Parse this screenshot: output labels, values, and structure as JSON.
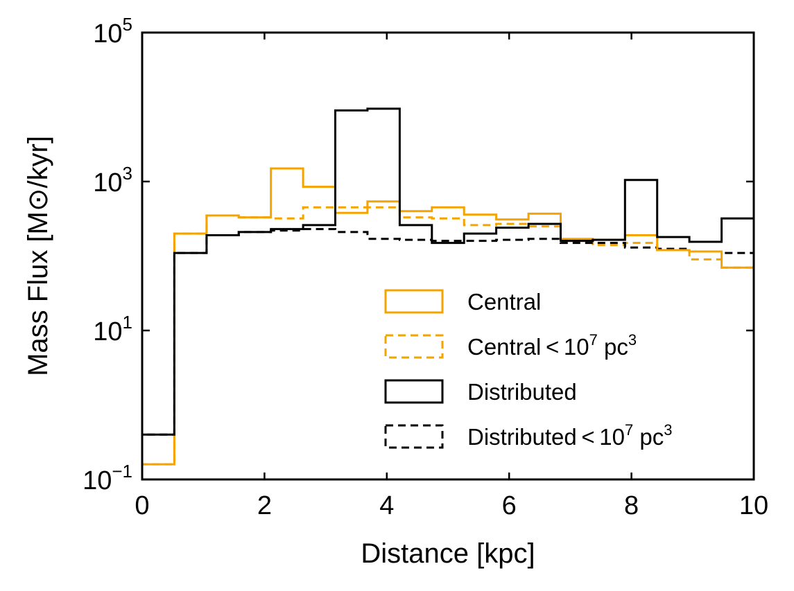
{
  "chart_data": {
    "type": "histogram-step",
    "title": "",
    "xlabel": "Distance [kpc]",
    "ylabel": "Mass Flux [M⊙/kyr]",
    "xlim": [
      0,
      10
    ],
    "ylim": [
      0.1,
      100000
    ],
    "yscale": "log",
    "grid": false,
    "legend_position": "lower-right",
    "x_ticks": [
      {
        "value": 0,
        "label": "0"
      },
      {
        "value": 2,
        "label": "2"
      },
      {
        "value": 4,
        "label": "4"
      },
      {
        "value": 6,
        "label": "6"
      },
      {
        "value": 8,
        "label": "8"
      },
      {
        "value": 10,
        "label": "10"
      }
    ],
    "y_ticks": [
      {
        "value": 0.1,
        "base": "10",
        "exp": "−1"
      },
      {
        "value": 10,
        "base": "10",
        "exp": "1"
      },
      {
        "value": 1000,
        "base": "10",
        "exp": "3"
      },
      {
        "value": 100000,
        "base": "10",
        "exp": "5"
      }
    ],
    "bin_edges": [
      0,
      0.526,
      1.053,
      1.579,
      2.105,
      2.632,
      3.158,
      3.684,
      4.211,
      4.737,
      5.263,
      5.789,
      6.316,
      6.842,
      7.368,
      7.895,
      8.421,
      8.947,
      9.474,
      10
    ],
    "series": [
      {
        "name": "Central",
        "color": "#f5a300",
        "dash": "solid",
        "values": [
          0.16,
          200,
          350,
          330,
          1500,
          850,
          380,
          540,
          400,
          450,
          360,
          310,
          370,
          170,
          165,
          190,
          120,
          115,
          70
        ]
      },
      {
        "name": "Central < 10⁷ pc³",
        "color": "#f5a300",
        "dash": "dashed",
        "values": [
          0.16,
          200,
          350,
          330,
          320,
          450,
          450,
          450,
          330,
          320,
          260,
          270,
          250,
          160,
          140,
          150,
          120,
          90,
          70
        ]
      },
      {
        "name": "Distributed",
        "color": "#000000",
        "dash": "solid",
        "values": [
          0.4,
          110,
          190,
          210,
          230,
          260,
          9000,
          9500,
          260,
          150,
          200,
          240,
          270,
          160,
          165,
          1050,
          180,
          155,
          320
        ]
      },
      {
        "name": "Distributed < 10⁷ pc³",
        "color": "#000000",
        "dash": "dashed",
        "values": [
          0.4,
          110,
          190,
          210,
          220,
          230,
          210,
          170,
          165,
          160,
          160,
          165,
          170,
          150,
          150,
          130,
          125,
          115,
          110
        ]
      }
    ]
  },
  "legend": {
    "items": [
      {
        "label": "Central",
        "sup1": "",
        "tail": "",
        "sup2": ""
      },
      {
        "label": "Central < 10",
        "sup1": "7",
        "tail": " pc",
        "sup2": "3"
      },
      {
        "label": "Distributed",
        "sup1": "",
        "tail": "",
        "sup2": ""
      },
      {
        "label": "Distributed < 10",
        "sup1": "7",
        "tail": " pc",
        "sup2": "3"
      }
    ]
  }
}
